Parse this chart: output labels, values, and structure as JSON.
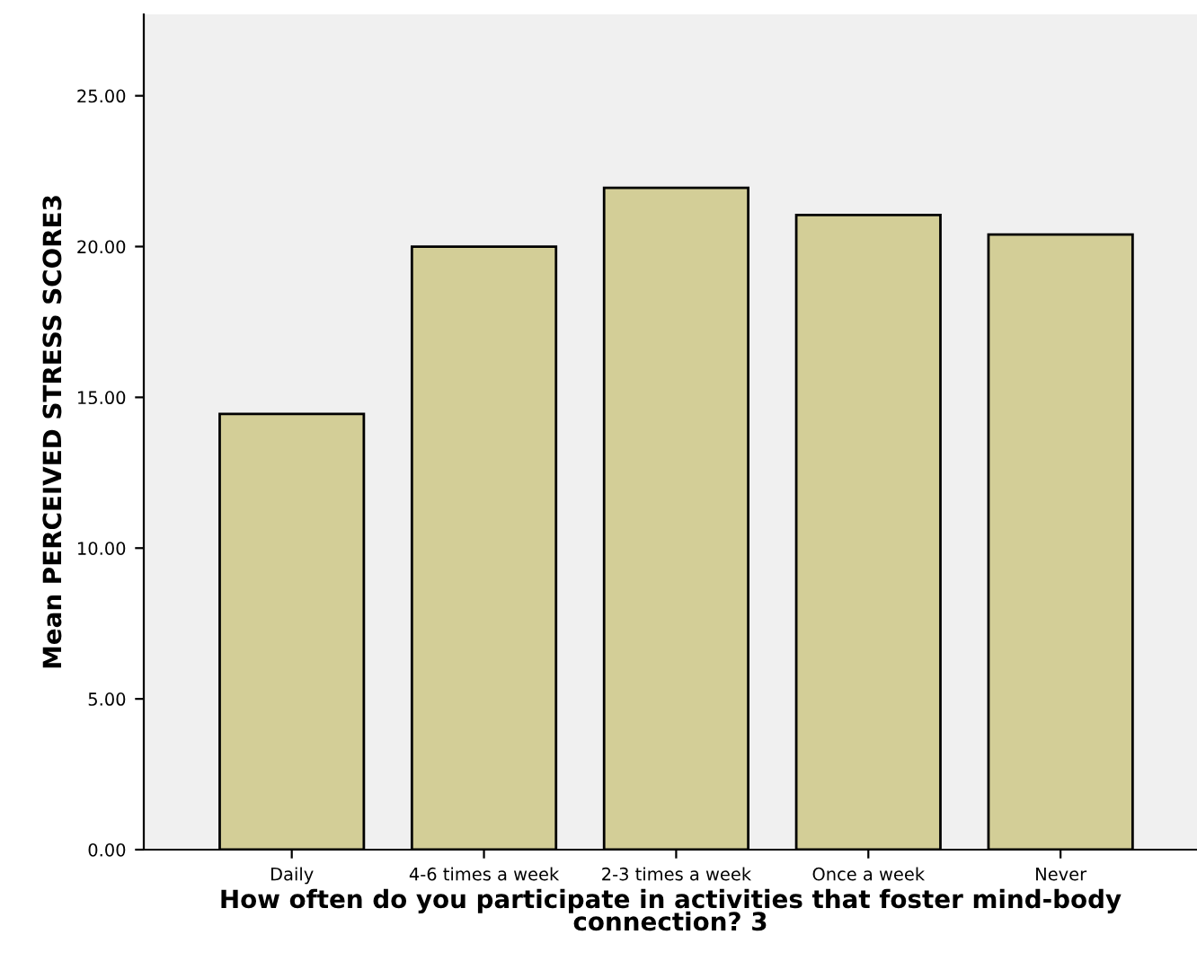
{
  "chart_data": {
    "type": "bar",
    "xlabel": "How often do you participate in activities that foster mind-body connection? 3",
    "ylabel": "Mean PERCEIVED STRESS SCORE3",
    "categories": [
      "Daily",
      "4-6 times a week",
      "2-3 times a week",
      "Once a week",
      "Never"
    ],
    "values": [
      14.45,
      20.0,
      21.95,
      21.05,
      20.4
    ],
    "color": "#d3ce97",
    "ylim": [
      0,
      27.7
    ],
    "yticks": [
      {
        "value": 0,
        "label": "0.00"
      },
      {
        "value": 5,
        "label": "5.00"
      },
      {
        "value": 10,
        "label": "10.00"
      },
      {
        "value": 15,
        "label": "15.00"
      },
      {
        "value": 20,
        "label": "20.00"
      },
      {
        "value": 25,
        "label": "25.00"
      }
    ],
    "grid": false
  }
}
